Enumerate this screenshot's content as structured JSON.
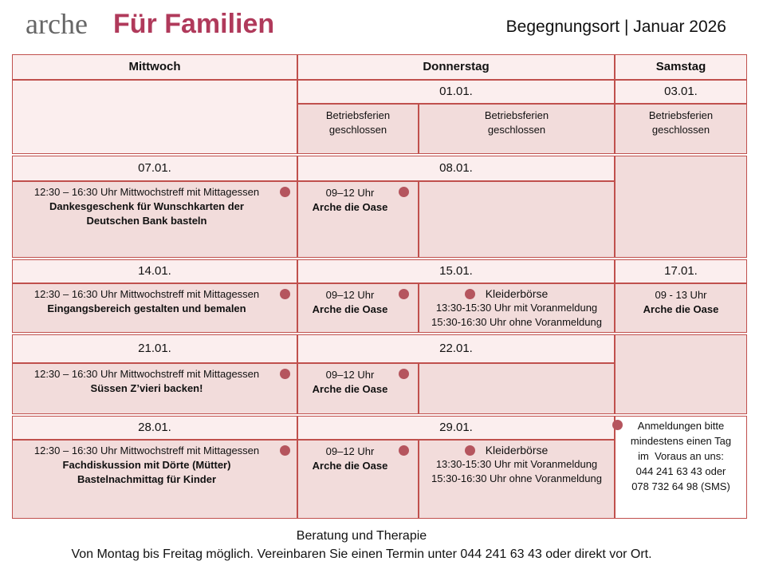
{
  "header": {
    "brand": "arche",
    "brand_bold": "Für Familien",
    "subtitle": "Begegnungsort | Januar 2026"
  },
  "days": [
    "Mittwoch",
    "Donnerstag",
    "Samstag"
  ],
  "rows": [
    {
      "thursday": {
        "date": "01.01.",
        "left": [
          "Betriebsferien",
          "geschlossen"
        ],
        "right": [
          "Betriebsferien",
          "geschlossen"
        ]
      },
      "saturday": {
        "date": "03.01.",
        "lines": [
          "Betriebsferien",
          "geschlossen"
        ]
      }
    },
    {
      "wednesday": {
        "date": "07.01.",
        "time": "12:30 – 16:30 Uhr Mittwochstreff mit Mittagessen",
        "lines": [
          "Dankesgeschenk für Wunschkarten der",
          "Deutschen Bank basteln"
        ]
      },
      "thursday": {
        "date": "08.01.",
        "left": [
          "09–12 Uhr",
          "Arche die Oase"
        ]
      }
    },
    {
      "wednesday": {
        "date": "14.01.",
        "time": "12:30 – 16:30 Uhr Mittwochstreff mit Mittagessen",
        "lines": [
          "Eingangsbereich gestalten und bemalen"
        ]
      },
      "thursday": {
        "date": "15.01.",
        "left": [
          "09–12 Uhr",
          "Arche die Oase"
        ],
        "right": [
          "Kleiderbörse",
          "13:30-15:30 Uhr mit Voranmeldung",
          "15:30-16:30 Uhr ohne Voranmeldung"
        ]
      },
      "saturday": {
        "date": "17.01.",
        "lines": [
          "09 - 13 Uhr",
          "Arche die Oase"
        ]
      }
    },
    {
      "wednesday": {
        "date": "21.01.",
        "time": "12:30 – 16:30 Uhr Mittwochstreff mit Mittagessen",
        "lines": [
          "Süssen Z’vieri backen!"
        ]
      },
      "thursday": {
        "date": "22.01.",
        "left": [
          "09–12 Uhr",
          "Arche die Oase"
        ]
      }
    },
    {
      "wednesday": {
        "date": "28.01.",
        "time": "12:30 – 16:30 Uhr Mittwochstreff mit Mittagessen",
        "lines": [
          "Fachdiskussion mit Dörte (Mütter)",
          "Bastelnachmittag für Kinder"
        ]
      },
      "thursday": {
        "date": "29.01.",
        "left": [
          "09–12 Uhr",
          "Arche die Oase"
        ],
        "right": [
          "Kleiderbörse",
          "13:30-15:30 Uhr mit Voranmeldung",
          "15:30-16:30 Uhr ohne Voranmeldung"
        ]
      }
    }
  ],
  "note": [
    "Anmeldungen bitte",
    "mindestens einen Tag",
    "im  Voraus an uns:",
    "044 241 63 43 oder",
    "078 732 64 98 (SMS)"
  ],
  "footer": {
    "title": "Beratung und Therapie",
    "text": "Von Montag bis Freitag möglich. Vereinbaren Sie einen Termin unter 044 241 63 43 oder direkt vor Ort."
  }
}
